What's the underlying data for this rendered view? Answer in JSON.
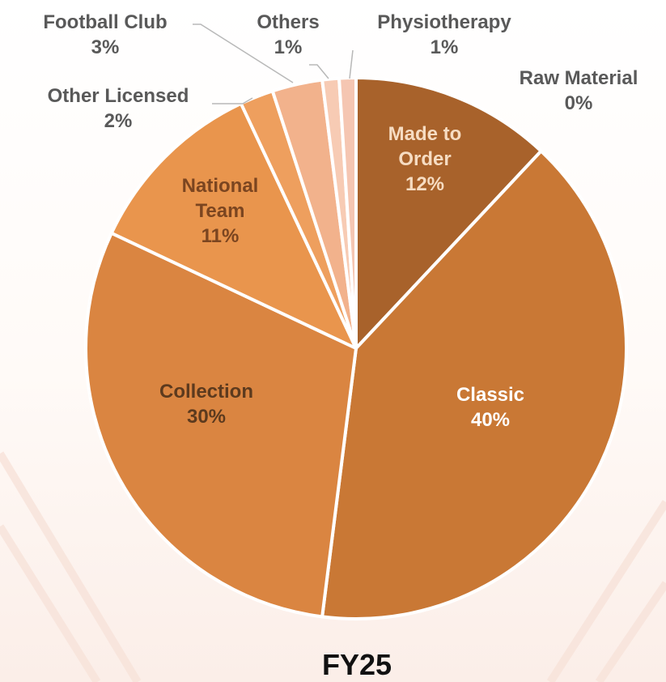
{
  "chart_data": {
    "type": "pie",
    "title": "FY25",
    "categories": [
      "Made to Order",
      "Classic",
      "Collection",
      "National Team",
      "Other Licensed",
      "Football Club",
      "Others",
      "Physiotherapy",
      "Raw Material"
    ],
    "values": [
      12,
      40,
      30,
      11,
      2,
      3,
      1,
      1,
      0
    ],
    "value_labels": [
      "12%",
      "40%",
      "30%",
      "11%",
      "2%",
      "3%",
      "1%",
      "1%",
      "0%"
    ],
    "colors": [
      "#a8622b",
      "#c97835",
      "#da8541",
      "#e9954d",
      "#ee9f5e",
      "#f2b28c",
      "#f7cbb4",
      "#f5c6b2",
      "#f0b89a"
    ]
  }
}
